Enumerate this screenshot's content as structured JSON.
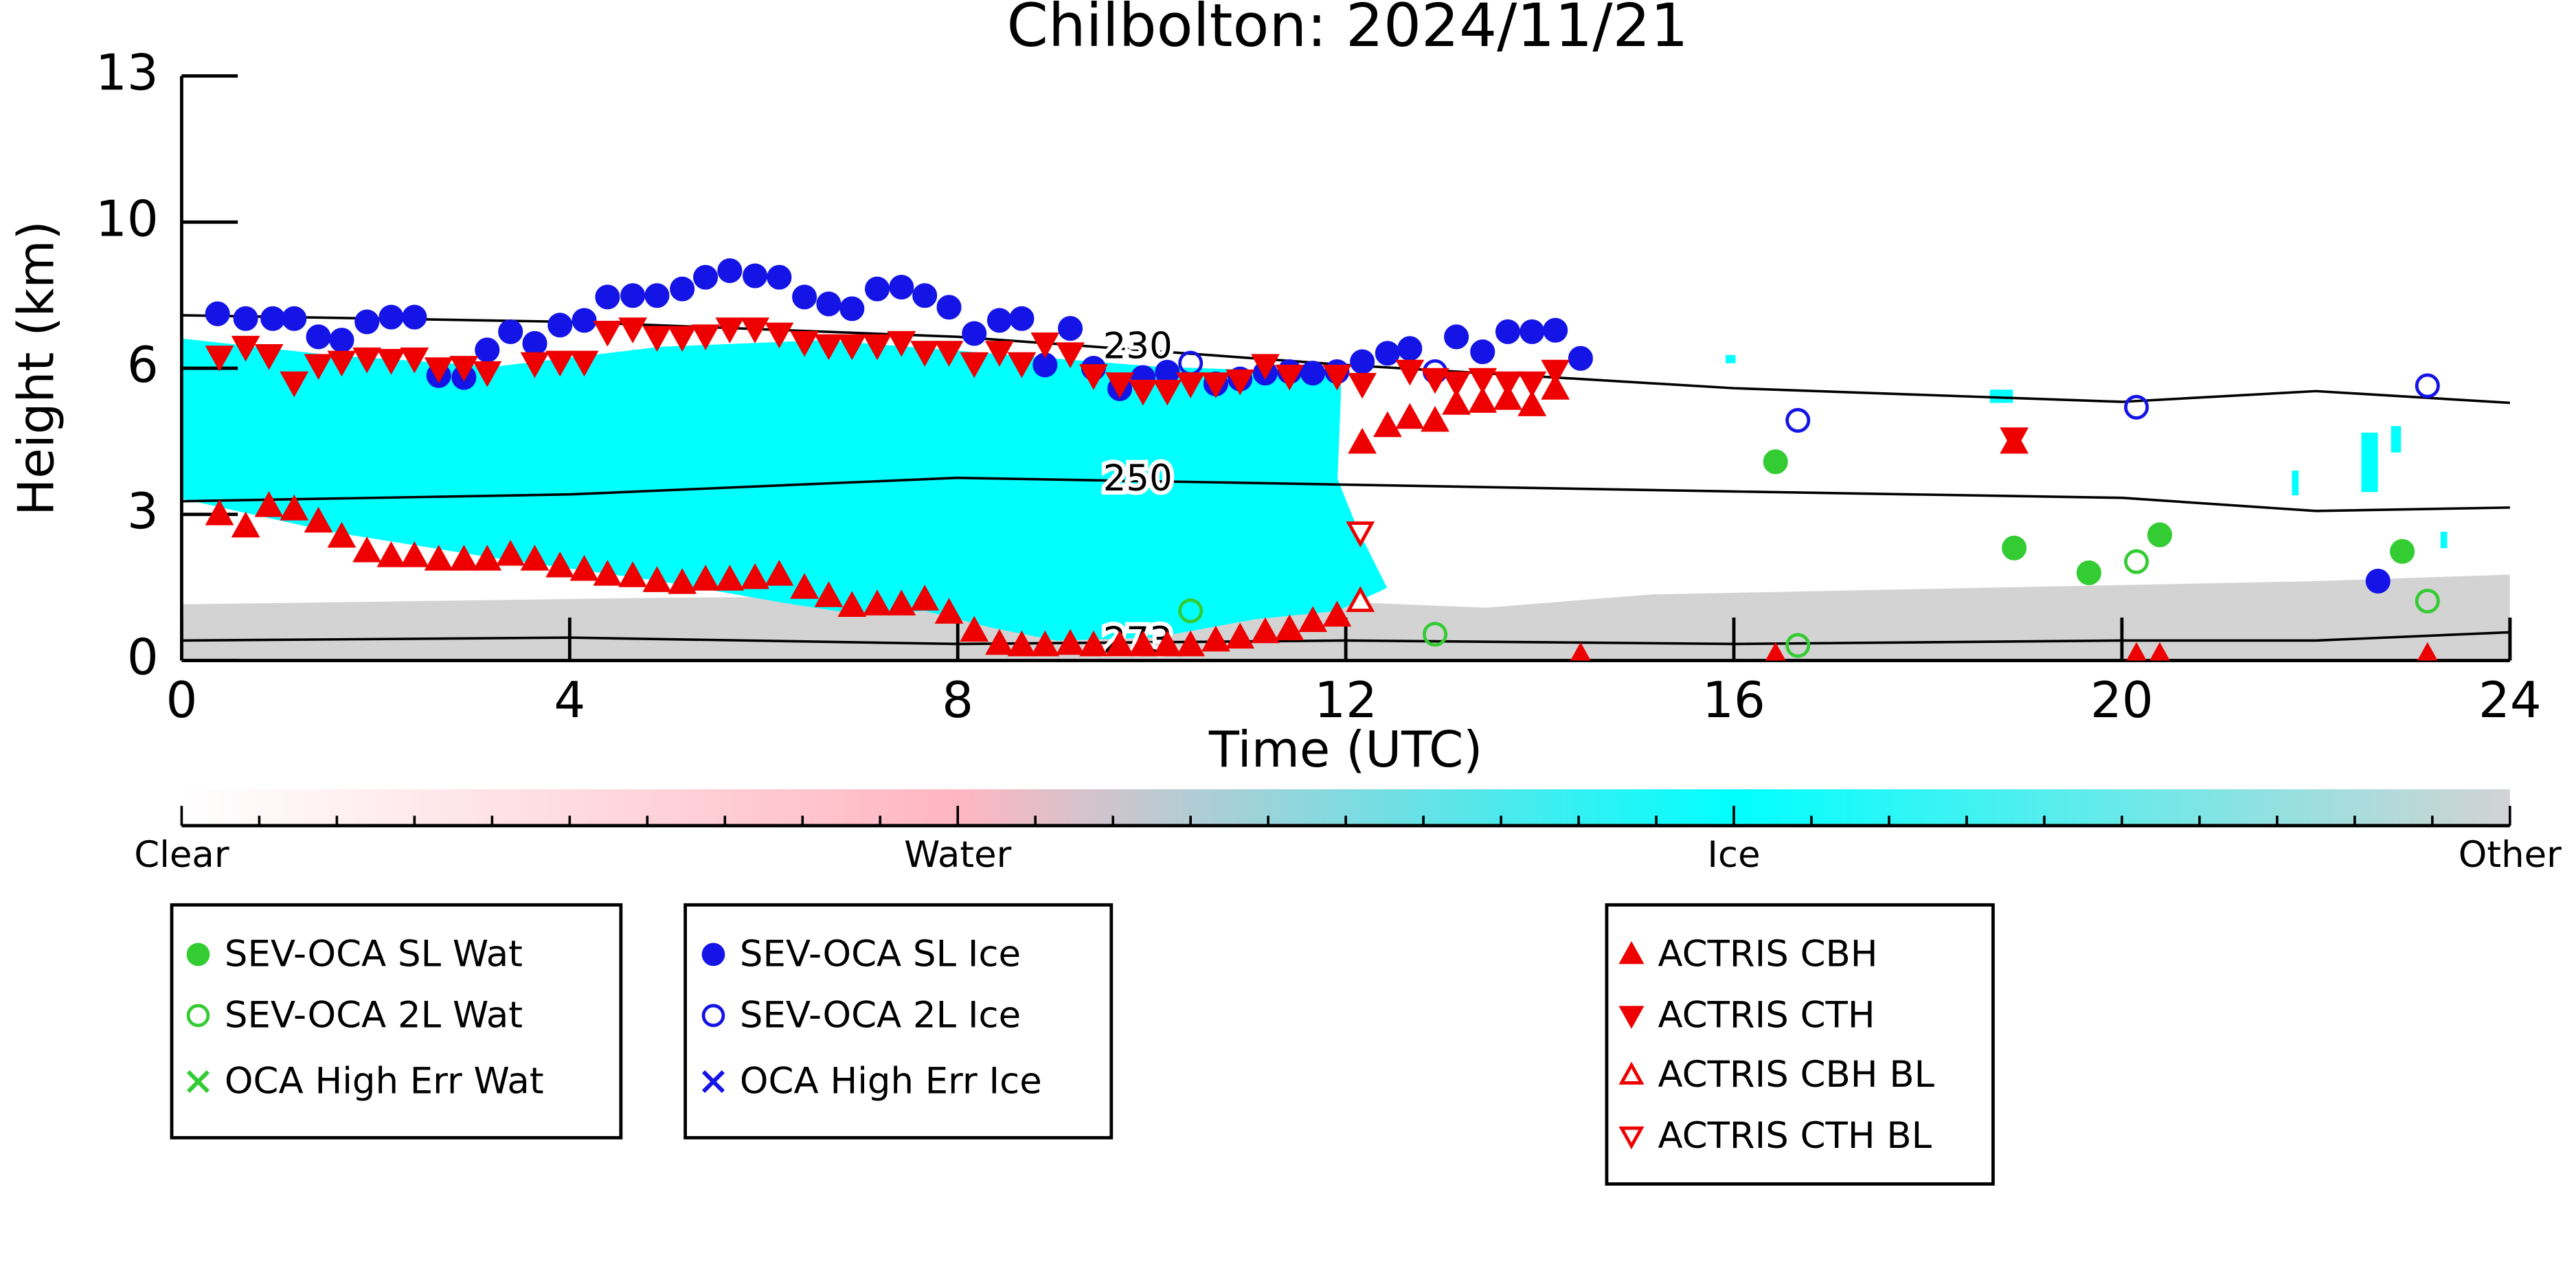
{
  "chart_data": {
    "type": "scatter",
    "title": "Chilbolton: 2024/11/21",
    "x_label": "Time (UTC)",
    "y_label": "Height (km)",
    "xlim": [
      0,
      24
    ],
    "xticks": [
      0,
      4,
      8,
      12,
      16,
      20,
      24
    ],
    "ylim": [
      0,
      13
    ],
    "yticks": [
      0,
      3,
      6,
      10,
      13
    ],
    "series": [
      {
        "name": "SEV-OCA SL Wat",
        "color": "#33cc33",
        "marker": "circle",
        "filled": true,
        "x": [
          16.43,
          18.89,
          19.66,
          20.39,
          22.89
        ],
        "values": [
          4.08,
          2.31,
          1.8,
          2.58,
          2.24
        ]
      },
      {
        "name": "SEV-OCA 2L Wat",
        "color": "#33cc33",
        "marker": "circle",
        "filled": false,
        "x": [
          10.4,
          12.92,
          16.66,
          20.15,
          23.15
        ],
        "values": [
          1.02,
          0.54,
          0.31,
          2.03,
          1.22
        ]
      },
      {
        "name": "OCA High Err Wat",
        "color": "#33cc33",
        "marker": "cross",
        "filled": false,
        "x": [],
        "values": []
      },
      {
        "name": "SEV-OCA SL Ice",
        "color": "#1414e6",
        "marker": "circle",
        "filled": true,
        "x": [
          0.37,
          0.66,
          0.94,
          1.16,
          1.41,
          1.65,
          1.91,
          2.16,
          2.4,
          2.65,
          2.91,
          3.15,
          3.39,
          3.64,
          3.9,
          4.15,
          4.39,
          4.65,
          4.9,
          5.16,
          5.4,
          5.65,
          5.91,
          6.16,
          6.42,
          6.67,
          6.91,
          7.17,
          7.42,
          7.66,
          7.91,
          8.17,
          8.43,
          8.66,
          8.9,
          9.16,
          9.4,
          9.67,
          9.91,
          10.16,
          10.66,
          10.91,
          11.17,
          11.42,
          11.66,
          11.91,
          12.17,
          12.43,
          12.66,
          13.14,
          13.41,
          13.67,
          13.92,
          14.16,
          14.42,
          22.64
        ],
        "values": [
          7.49,
          7.36,
          7.36,
          7.36,
          6.86,
          6.77,
          7.27,
          7.4,
          7.4,
          5.85,
          5.81,
          6.5,
          7.0,
          6.68,
          7.18,
          7.31,
          7.95,
          7.99,
          7.99,
          8.17,
          8.49,
          8.67,
          8.53,
          8.49,
          7.95,
          7.76,
          7.63,
          8.17,
          8.22,
          7.99,
          7.67,
          6.95,
          7.31,
          7.36,
          6.09,
          7.09,
          6.0,
          5.58,
          5.81,
          5.92,
          5.68,
          5.78,
          5.9,
          5.93,
          5.9,
          5.93,
          6.18,
          6.41,
          6.54,
          6.86,
          6.45,
          7.0,
          7.0,
          7.04,
          6.27,
          1.63
        ]
      },
      {
        "name": "SEV-OCA 2L Ice",
        "color": "#1414e6",
        "marker": "circle",
        "filled": false,
        "x": [
          10.4,
          12.92,
          16.66,
          20.15,
          23.15
        ],
        "values": [
          6.14,
          5.93,
          4.93,
          5.2,
          5.64
        ]
      },
      {
        "name": "OCA High Err Ice",
        "color": "#1414e6",
        "marker": "cross",
        "filled": false,
        "x": [],
        "values": []
      },
      {
        "name": "ACTRIS CBH",
        "color": "#ee0000",
        "marker": "triangle-up",
        "filled": true,
        "x": [
          0.39,
          0.66,
          0.9,
          1.16,
          1.41,
          1.65,
          1.91,
          2.16,
          2.4,
          2.65,
          2.91,
          3.15,
          3.39,
          3.64,
          3.9,
          4.15,
          4.39,
          4.65,
          4.9,
          5.16,
          5.4,
          5.65,
          5.91,
          6.16,
          6.42,
          6.67,
          6.91,
          7.17,
          7.42,
          7.66,
          7.91,
          8.17,
          8.43,
          8.66,
          8.9,
          9.16,
          9.4,
          9.67,
          9.91,
          10.16,
          10.4,
          10.66,
          10.91,
          11.17,
          11.42,
          11.66,
          11.91,
          12.17,
          12.43,
          12.66,
          12.92,
          13.14,
          13.41,
          13.67,
          13.92,
          14.16,
          14.42,
          16.43,
          18.89,
          20.15,
          20.39,
          23.15
        ],
        "values": [
          3.0,
          2.75,
          3.17,
          3.1,
          2.85,
          2.54,
          2.24,
          2.14,
          2.14,
          2.07,
          2.07,
          2.07,
          2.17,
          2.07,
          1.93,
          1.86,
          1.76,
          1.73,
          1.63,
          1.59,
          1.66,
          1.66,
          1.69,
          1.76,
          1.49,
          1.32,
          1.12,
          1.15,
          1.15,
          1.25,
          0.98,
          0.61,
          0.34,
          0.31,
          0.31,
          0.34,
          0.31,
          0.31,
          0.31,
          0.31,
          0.31,
          0.41,
          0.47,
          0.58,
          0.64,
          0.81,
          0.92,
          4.47,
          4.81,
          4.98,
          4.92,
          5.27,
          5.31,
          5.37,
          5.24,
          5.58,
          0.07,
          0.07,
          4.47,
          0.07,
          0.07,
          0.07
        ]
      },
      {
        "name": "ACTRIS CTH",
        "color": "#ee0000",
        "marker": "triangle-down",
        "filled": true,
        "x": [
          0.39,
          0.66,
          0.9,
          1.16,
          1.41,
          1.65,
          1.91,
          2.16,
          2.4,
          2.65,
          2.91,
          3.15,
          3.64,
          3.9,
          4.15,
          4.39,
          4.65,
          4.9,
          5.16,
          5.4,
          5.65,
          5.91,
          6.16,
          6.42,
          6.67,
          6.91,
          7.17,
          7.42,
          7.66,
          7.91,
          8.17,
          8.43,
          8.66,
          8.9,
          9.16,
          9.4,
          9.67,
          9.91,
          10.16,
          10.4,
          10.66,
          10.91,
          11.17,
          11.42,
          11.91,
          12.17,
          12.66,
          12.92,
          13.14,
          13.41,
          13.67,
          13.92,
          14.16,
          18.89
        ],
        "values": [
          6.32,
          6.59,
          6.36,
          5.71,
          6.09,
          6.18,
          6.27,
          6.23,
          6.27,
          6.0,
          6.04,
          5.92,
          6.14,
          6.18,
          6.18,
          7.0,
          7.09,
          6.86,
          6.86,
          6.9,
          7.09,
          7.09,
          6.95,
          6.72,
          6.63,
          6.63,
          6.63,
          6.72,
          6.45,
          6.45,
          6.14,
          6.45,
          6.14,
          6.68,
          6.41,
          5.86,
          5.69,
          5.54,
          5.54,
          5.69,
          5.69,
          5.75,
          6.09,
          5.85,
          5.85,
          5.68,
          5.95,
          5.78,
          5.71,
          5.78,
          5.71,
          5.71,
          5.95,
          4.56
        ]
      },
      {
        "name": "ACTRIS CBH BL",
        "color": "#ee0000",
        "marker": "triangle-up",
        "filled": false,
        "x": [
          12.15
        ],
        "values": [
          1.22
        ]
      },
      {
        "name": "ACTRIS CTH BL",
        "color": "#ee0000",
        "marker": "triangle-down",
        "filled": false,
        "x": [
          12.15
        ],
        "values": [
          2.63
        ]
      }
    ],
    "contours": [
      {
        "label": 230,
        "x": [
          0,
          4,
          8,
          12,
          16,
          20,
          22,
          24
        ],
        "values": [
          7.45,
          7.27,
          6.86,
          6.09,
          5.59,
          5.31,
          5.53,
          5.29
        ]
      },
      {
        "label": 250,
        "x": [
          0,
          4,
          8,
          12,
          16,
          20,
          22,
          24
        ],
        "values": [
          3.27,
          3.41,
          3.75,
          3.61,
          3.47,
          3.34,
          3.07,
          3.14
        ]
      },
      {
        "label": 273,
        "x": [
          0,
          4,
          8,
          12,
          16,
          20,
          22,
          24
        ],
        "values": [
          0.41,
          0.47,
          0.34,
          0.41,
          0.34,
          0.41,
          0.41,
          0.58
        ]
      }
    ],
    "colorbar": {
      "labels": [
        "Clear",
        "Water",
        "Ice",
        "Other"
      ],
      "colors": [
        "#ffffff",
        "#ffb6c1",
        "#00ffff",
        "#d3d3d3"
      ]
    }
  }
}
